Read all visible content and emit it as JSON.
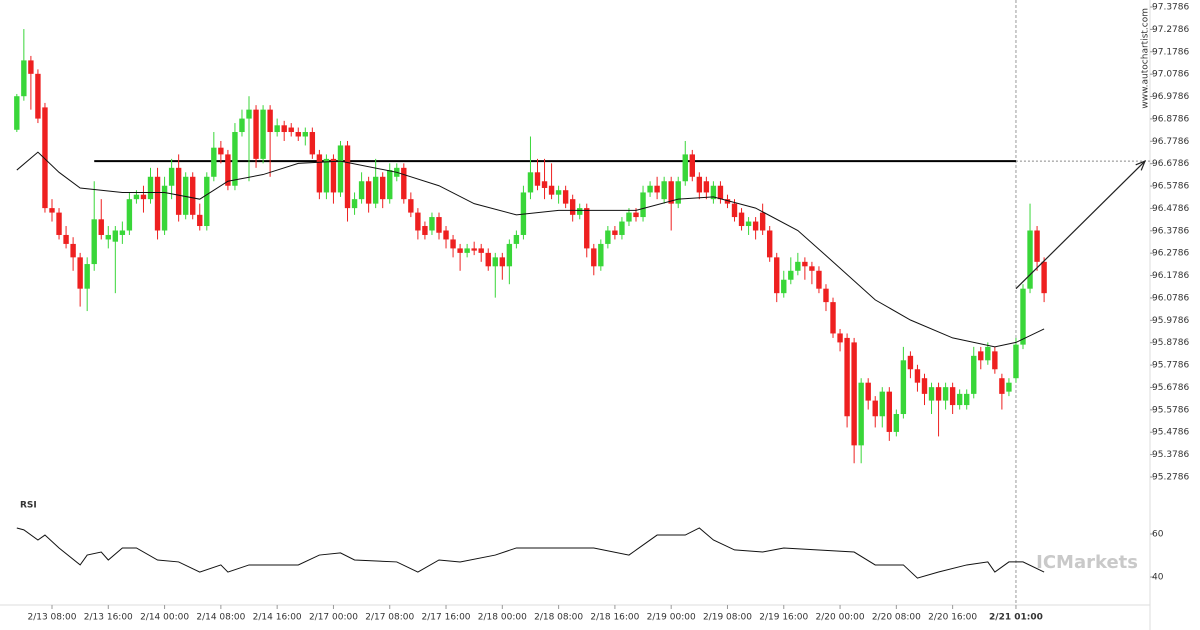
{
  "chart_data": {
    "type": "candlestick",
    "watermark": "www.autochartist.com",
    "logo": "ICMarkets",
    "up_color": "#39d639",
    "down_color": "#ee2020",
    "xlim": [
      -2.39,
      161.05
    ],
    "ylim": [
      95.2786,
      97.3786
    ],
    "yticks": [
      95.2786,
      95.3786,
      95.4786,
      95.5786,
      95.6786,
      95.7786,
      95.8786,
      95.9786,
      96.0786,
      96.1786,
      96.2786,
      96.3786,
      96.4786,
      96.5786,
      96.6786,
      96.7786,
      96.8786,
      96.9786,
      97.0786,
      97.1786,
      97.2786,
      97.3786
    ],
    "xticks": [
      {
        "value": 5,
        "label": "2/13 08:00"
      },
      {
        "value": 13,
        "label": "2/13 16:00"
      },
      {
        "value": 21,
        "label": "2/14 00:00"
      },
      {
        "value": 29,
        "label": "2/14 08:00"
      },
      {
        "value": 37,
        "label": "2/14 16:00"
      },
      {
        "value": 45,
        "label": "2/17 00:00"
      },
      {
        "value": 53,
        "label": "2/17 08:00"
      },
      {
        "value": 61,
        "label": "2/17 16:00"
      },
      {
        "value": 69,
        "label": "2/18 00:00"
      },
      {
        "value": 77,
        "label": "2/18 08:00"
      },
      {
        "value": 85,
        "label": "2/18 16:00"
      },
      {
        "value": 93,
        "label": "2/19 00:00"
      },
      {
        "value": 101,
        "label": "2/19 08:00"
      },
      {
        "value": 109,
        "label": "2/19 16:00"
      },
      {
        "value": 117,
        "label": "2/20 00:00"
      },
      {
        "value": 125,
        "label": "2/20 08:00"
      },
      {
        "value": 133,
        "label": "2/20 16:00"
      },
      {
        "value": 142,
        "label": "2/21 01:00"
      }
    ],
    "cursor_x": 142,
    "candles": [
      [
        96.83,
        96.99,
        96.82,
        96.98
      ],
      [
        96.98,
        97.28,
        96.96,
        97.14
      ],
      [
        97.14,
        97.16,
        96.92,
        97.08
      ],
      [
        97.08,
        97.1,
        96.86,
        96.88
      ],
      [
        96.93,
        96.95,
        96.46,
        96.48
      ],
      [
        96.48,
        96.52,
        96.42,
        96.46
      ],
      [
        96.46,
        96.48,
        96.34,
        96.36
      ],
      [
        96.36,
        96.4,
        96.3,
        96.32
      ],
      [
        96.32,
        96.35,
        96.2,
        96.26
      ],
      [
        96.26,
        96.28,
        96.04,
        96.12
      ],
      [
        96.12,
        96.26,
        96.02,
        96.23
      ],
      [
        96.23,
        96.6,
        96.2,
        96.43
      ],
      [
        96.43,
        96.52,
        96.34,
        96.36
      ],
      [
        96.34,
        96.4,
        96.3,
        96.36
      ],
      [
        96.33,
        96.4,
        96.1,
        96.38
      ],
      [
        96.36,
        96.42,
        96.32,
        96.38
      ],
      [
        96.38,
        96.55,
        96.36,
        96.52
      ],
      [
        96.52,
        96.56,
        96.5,
        96.54
      ],
      [
        96.54,
        96.58,
        96.46,
        96.52
      ],
      [
        96.52,
        96.66,
        96.5,
        96.62
      ],
      [
        96.62,
        96.66,
        96.34,
        96.38
      ],
      [
        96.38,
        96.62,
        96.36,
        96.58
      ],
      [
        96.58,
        96.7,
        96.52,
        96.66
      ],
      [
        96.66,
        96.72,
        96.42,
        96.45
      ],
      [
        96.45,
        96.64,
        96.43,
        96.62
      ],
      [
        96.62,
        96.64,
        96.43,
        96.45
      ],
      [
        96.45,
        96.5,
        96.38,
        96.4
      ],
      [
        96.4,
        96.64,
        96.38,
        96.62
      ],
      [
        96.62,
        96.82,
        96.6,
        96.75
      ],
      [
        96.75,
        96.78,
        96.68,
        96.72
      ],
      [
        96.72,
        96.74,
        96.56,
        96.58
      ],
      [
        96.58,
        96.86,
        96.56,
        96.82
      ],
      [
        96.82,
        96.92,
        96.8,
        96.88
      ],
      [
        96.88,
        96.98,
        96.6,
        96.92
      ],
      [
        96.92,
        96.94,
        96.66,
        96.7
      ],
      [
        96.7,
        96.94,
        96.68,
        96.92
      ],
      [
        96.92,
        96.94,
        96.62,
        96.82
      ],
      [
        96.82,
        96.88,
        96.8,
        96.85
      ],
      [
        96.85,
        96.87,
        96.78,
        96.82
      ],
      [
        96.84,
        96.86,
        96.8,
        96.82
      ],
      [
        96.82,
        96.84,
        96.78,
        96.8
      ],
      [
        96.8,
        96.84,
        96.76,
        96.82
      ],
      [
        96.82,
        96.84,
        96.7,
        96.72
      ],
      [
        96.72,
        96.74,
        96.52,
        96.55
      ],
      [
        96.55,
        96.72,
        96.52,
        96.7
      ],
      [
        96.7,
        96.72,
        96.5,
        96.55
      ],
      [
        96.55,
        96.78,
        96.53,
        96.76
      ],
      [
        96.76,
        96.78,
        96.42,
        96.48
      ],
      [
        96.48,
        96.55,
        96.45,
        96.52
      ],
      [
        96.52,
        96.64,
        96.5,
        96.6
      ],
      [
        96.6,
        96.62,
        96.46,
        96.5
      ],
      [
        96.5,
        96.7,
        96.48,
        96.62
      ],
      [
        96.62,
        96.64,
        96.48,
        96.52
      ],
      [
        96.52,
        96.68,
        96.5,
        96.65
      ],
      [
        96.62,
        96.68,
        96.6,
        96.66
      ],
      [
        96.66,
        96.68,
        96.5,
        96.52
      ],
      [
        96.52,
        96.55,
        96.44,
        96.46
      ],
      [
        96.46,
        96.48,
        96.34,
        96.38
      ],
      [
        96.4,
        96.42,
        96.34,
        96.36
      ],
      [
        96.38,
        96.46,
        96.36,
        96.44
      ],
      [
        96.44,
        96.46,
        96.34,
        96.37
      ],
      [
        96.38,
        96.4,
        96.3,
        96.34
      ],
      [
        96.34,
        96.36,
        96.26,
        96.3
      ],
      [
        96.3,
        96.32,
        96.2,
        96.28
      ],
      [
        96.28,
        96.32,
        96.26,
        96.3
      ],
      [
        96.3,
        96.33,
        96.27,
        96.29
      ],
      [
        96.3,
        96.32,
        96.24,
        96.28
      ],
      [
        96.28,
        96.3,
        96.2,
        96.22
      ],
      [
        96.22,
        96.28,
        96.08,
        96.26
      ],
      [
        96.26,
        96.28,
        96.16,
        96.22
      ],
      [
        96.22,
        96.34,
        96.14,
        96.32
      ],
      [
        96.32,
        96.38,
        96.3,
        96.36
      ],
      [
        96.36,
        96.58,
        96.34,
        96.55
      ],
      [
        96.55,
        96.8,
        96.52,
        96.64
      ],
      [
        96.64,
        96.7,
        96.56,
        96.58
      ],
      [
        96.6,
        96.7,
        96.52,
        96.57
      ],
      [
        96.58,
        96.68,
        96.52,
        96.54
      ],
      [
        96.54,
        96.58,
        96.5,
        96.56
      ],
      [
        96.56,
        96.58,
        96.48,
        96.5
      ],
      [
        96.52,
        96.54,
        96.42,
        96.45
      ],
      [
        96.45,
        96.5,
        96.43,
        96.48
      ],
      [
        96.48,
        96.5,
        96.26,
        96.3
      ],
      [
        96.3,
        96.32,
        96.18,
        96.22
      ],
      [
        96.22,
        96.34,
        96.2,
        96.32
      ],
      [
        96.32,
        96.4,
        96.3,
        96.38
      ],
      [
        96.38,
        96.4,
        96.34,
        96.36
      ],
      [
        96.36,
        96.44,
        96.34,
        96.42
      ],
      [
        96.42,
        96.48,
        96.4,
        96.46
      ],
      [
        96.46,
        96.48,
        96.42,
        96.44
      ],
      [
        96.44,
        96.58,
        96.42,
        96.55
      ],
      [
        96.55,
        96.6,
        96.53,
        96.58
      ],
      [
        96.58,
        96.62,
        96.52,
        96.55
      ],
      [
        96.52,
        96.62,
        96.5,
        96.6
      ],
      [
        96.6,
        96.62,
        96.38,
        96.5
      ],
      [
        96.5,
        96.62,
        96.48,
        96.6
      ],
      [
        96.6,
        96.78,
        96.58,
        96.72
      ],
      [
        96.72,
        96.74,
        96.6,
        96.62
      ],
      [
        96.62,
        96.64,
        96.52,
        96.55
      ],
      [
        96.6,
        96.62,
        96.52,
        96.55
      ],
      [
        96.52,
        96.6,
        96.5,
        96.58
      ],
      [
        96.58,
        96.6,
        96.5,
        96.52
      ],
      [
        96.52,
        96.54,
        96.48,
        96.5
      ],
      [
        96.5,
        96.52,
        96.42,
        96.44
      ],
      [
        96.46,
        96.48,
        96.38,
        96.4
      ],
      [
        96.4,
        96.44,
        96.36,
        96.42
      ],
      [
        96.42,
        96.44,
        96.34,
        96.38
      ],
      [
        96.46,
        96.5,
        96.36,
        96.38
      ],
      [
        96.38,
        96.4,
        96.24,
        96.26
      ],
      [
        96.26,
        96.28,
        96.06,
        96.1
      ],
      [
        96.1,
        96.2,
        96.08,
        96.16
      ],
      [
        96.16,
        96.26,
        96.14,
        96.2
      ],
      [
        96.2,
        96.28,
        96.18,
        96.24
      ],
      [
        96.24,
        96.26,
        96.16,
        96.22
      ],
      [
        96.22,
        96.24,
        96.14,
        96.2
      ],
      [
        96.2,
        96.22,
        96.1,
        96.12
      ],
      [
        96.12,
        96.14,
        96.02,
        96.06
      ],
      [
        96.06,
        96.08,
        95.9,
        95.92
      ],
      [
        95.92,
        95.94,
        95.84,
        95.88
      ],
      [
        95.9,
        95.92,
        95.5,
        95.55
      ],
      [
        95.88,
        95.9,
        95.34,
        95.42
      ],
      [
        95.42,
        95.72,
        95.34,
        95.7
      ],
      [
        95.7,
        95.72,
        95.58,
        95.62
      ],
      [
        95.62,
        95.64,
        95.5,
        95.55
      ],
      [
        95.55,
        95.68,
        95.5,
        95.66
      ],
      [
        95.66,
        95.68,
        95.44,
        95.48
      ],
      [
        95.48,
        95.58,
        95.46,
        95.56
      ],
      [
        95.56,
        95.86,
        95.54,
        95.8
      ],
      [
        95.82,
        95.84,
        95.72,
        95.76
      ],
      [
        95.76,
        95.78,
        95.66,
        95.7
      ],
      [
        95.72,
        95.74,
        95.6,
        95.65
      ],
      [
        95.62,
        95.7,
        95.56,
        95.68
      ],
      [
        95.68,
        95.7,
        95.46,
        95.62
      ],
      [
        95.62,
        95.7,
        95.58,
        95.68
      ],
      [
        95.68,
        95.7,
        95.56,
        95.6
      ],
      [
        95.6,
        95.67,
        95.58,
        95.65
      ],
      [
        95.6,
        95.67,
        95.58,
        95.65
      ],
      [
        95.65,
        95.86,
        95.63,
        95.82
      ],
      [
        95.84,
        95.86,
        95.76,
        95.8
      ],
      [
        95.8,
        95.88,
        95.78,
        95.86
      ],
      [
        95.84,
        95.86,
        95.74,
        95.76
      ],
      [
        95.72,
        95.74,
        95.58,
        95.65
      ],
      [
        95.66,
        95.72,
        95.64,
        95.7
      ],
      [
        95.72,
        95.9,
        95.7,
        95.87
      ],
      [
        95.87,
        96.14,
        95.85,
        96.12
      ],
      [
        96.12,
        96.5,
        96.1,
        96.38
      ],
      [
        96.38,
        96.4,
        96.2,
        96.24
      ],
      [
        96.24,
        96.26,
        96.06,
        96.1
      ]
    ],
    "moving_average": {
      "color": "#111111",
      "x": [
        0,
        3,
        6,
        9,
        15,
        21,
        26,
        30,
        35,
        40,
        46,
        54,
        60,
        65,
        71,
        77,
        82,
        88,
        94,
        99,
        105,
        111,
        116,
        122,
        127,
        133,
        139,
        142,
        146
      ],
      "values": [
        96.65,
        96.73,
        96.64,
        96.57,
        96.55,
        96.55,
        96.52,
        96.6,
        96.63,
        96.68,
        96.69,
        96.64,
        96.58,
        96.5,
        96.45,
        96.47,
        96.47,
        96.47,
        96.52,
        96.53,
        96.48,
        96.38,
        96.24,
        96.07,
        95.98,
        95.9,
        95.86,
        95.88,
        95.94
      ]
    },
    "resistance": {
      "value": 96.69,
      "x": [
        11,
        142
      ]
    },
    "forecast_arrow": {
      "x": [
        142,
        160.34
      ],
      "values": [
        96.12,
        96.69
      ]
    },
    "rsi": {
      "label": "RSI",
      "ylim": [
        29.3,
        75.8
      ],
      "yticks": [
        40,
        60
      ],
      "x": [
        0,
        1,
        3,
        4,
        6,
        9,
        10,
        12,
        13,
        15,
        17,
        20,
        23,
        26,
        29,
        30,
        33,
        40,
        43,
        46,
        48,
        54,
        57,
        60,
        63,
        68,
        71,
        77,
        82,
        87,
        91,
        95,
        97,
        99,
        102,
        106,
        109,
        119,
        122,
        126,
        128,
        131,
        135,
        138,
        139,
        141,
        143,
        146
      ],
      "values": [
        62.8,
        61.9,
        57.2,
        59.5,
        53.5,
        45.6,
        50.2,
        51.6,
        47.9,
        53.5,
        53.5,
        47.9,
        47,
        42.3,
        45.6,
        42.3,
        45.6,
        45.6,
        50.2,
        51.2,
        47.9,
        47,
        42.3,
        47.9,
        47,
        50.2,
        53.5,
        53.5,
        53.5,
        50.2,
        59.5,
        59.5,
        62.8,
        57.2,
        52.6,
        51.6,
        53.5,
        51.6,
        45.6,
        45.6,
        39.5,
        42.3,
        45.6,
        47,
        42.3,
        47,
        47,
        42.3
      ]
    }
  }
}
